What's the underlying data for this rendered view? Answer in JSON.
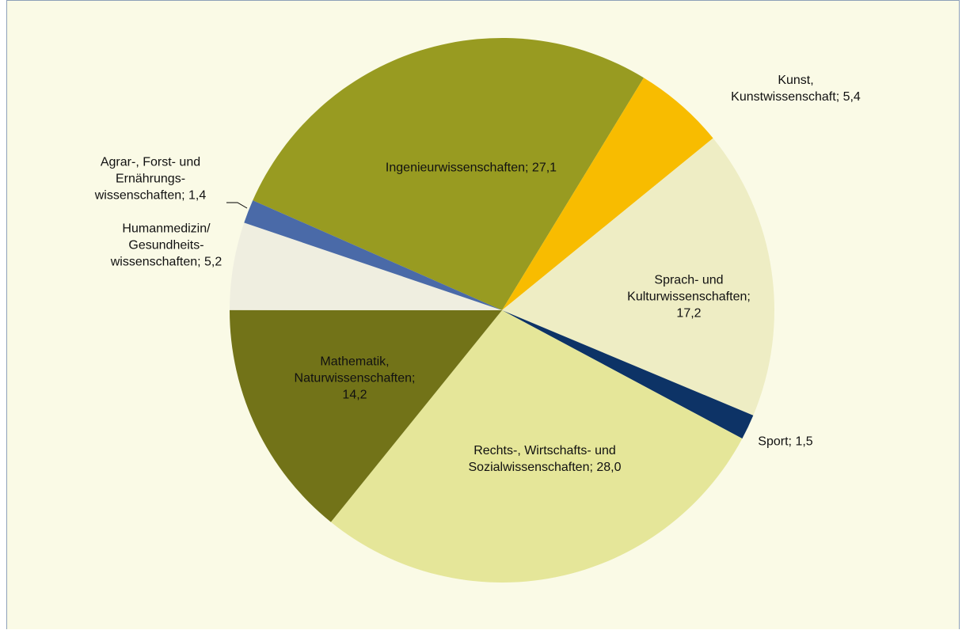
{
  "chart_data": {
    "type": "pie",
    "categories": [
      "Ingenieurwissenschaften",
      "Kunst, Kunstwissenschaft",
      "Sprach- und Kulturwissenschaften",
      "Sport",
      "Rechts-, Wirtschafts- und Sozialwissenschaften",
      "Mathematik, Naturwissenschaften",
      "Humanmedizin/ Gesundheits- wissenschaften",
      "Agrar-, Forst- und Ernährungs- wissenschaften"
    ],
    "values": [
      27.1,
      5.4,
      17.2,
      1.5,
      28.0,
      14.2,
      5.2,
      1.4
    ],
    "value_labels": [
      "27,1",
      "5,4",
      "17,2",
      "1,5",
      "28,0",
      "14,2",
      "5,2",
      "1,4"
    ],
    "label_separator": "; ",
    "colors": [
      "#989b21",
      "#f8bc00",
      "#eeedc4",
      "#0d3366",
      "#e5e699",
      "#727318",
      "#efeee0",
      "#4a6aa8"
    ]
  }
}
